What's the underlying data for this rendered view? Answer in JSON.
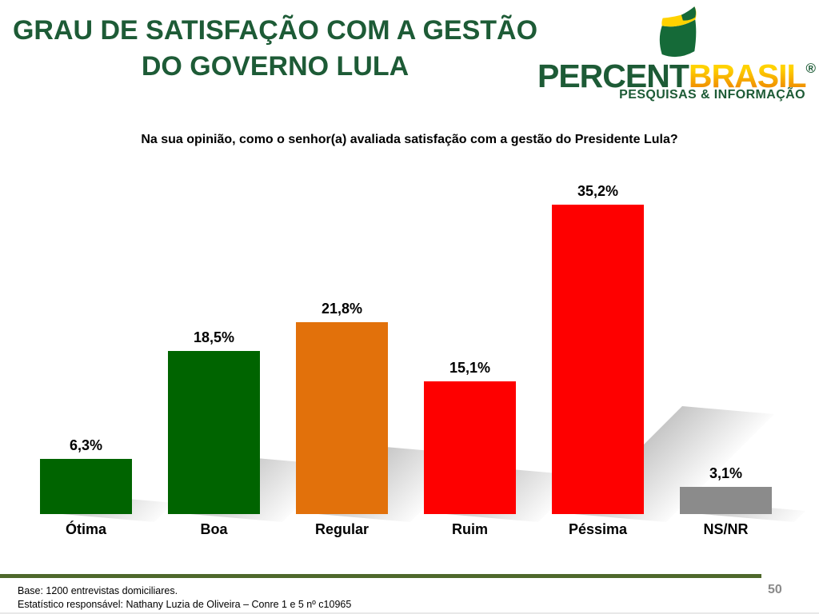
{
  "slide": {
    "title_line1": "GRAU DE SATISFAÇÃO COM A GESTÃO",
    "title_line2": "DO GOVERNO LULA",
    "question": "Na sua opinião, como o senhor(a) avaliada satisfação com a gestão do Presidente Lula?",
    "page_number": "50"
  },
  "logo": {
    "wordmark_part1": "PERCENT",
    "wordmark_part2": "BRASIL",
    "registered_mark": "®",
    "tagline": "PESQUISAS & INFORMAÇÃO",
    "colors": {
      "green": "#1d5b36",
      "yellow": "#ffd200",
      "orange": "#f29b00"
    }
  },
  "footer": {
    "line1": "Base: 1200 entrevistas domiciliares.",
    "line2": "Estatístico responsável: Nathany Luzia de Oliveira – Conre 1 e 5 nº c10965",
    "divider_color": "#4e682b"
  },
  "chart_data": {
    "type": "bar",
    "title": "GRAU DE SATISFAÇÃO COM A GESTÃO DO GOVERNO LULA",
    "subtitle": "Na sua opinião, como o senhor(a) avaliada satisfação com a gestão do Presidente Lula?",
    "categories": [
      "Ótima",
      "Boa",
      "Regular",
      "Ruim",
      "Péssima",
      "NS/NR"
    ],
    "values": [
      6.3,
      18.5,
      21.8,
      15.1,
      35.2,
      3.1
    ],
    "value_labels": [
      "6,3%",
      "18,5%",
      "21,8%",
      "15,1%",
      "35,2%",
      "3,1%"
    ],
    "colors": [
      "#006400",
      "#006400",
      "#e2710b",
      "#fe0000",
      "#fe0000",
      "#8b8b8b"
    ],
    "slugs": [
      "otima",
      "boa",
      "regular",
      "ruim",
      "pessima",
      "ns-nr"
    ],
    "xlabel": "",
    "ylabel": "",
    "ylim": [
      0,
      40
    ],
    "grid": false,
    "legend": false,
    "bar_shadow": "perspective lower-right gray",
    "number_format": "pt-BR comma decimal percent"
  }
}
